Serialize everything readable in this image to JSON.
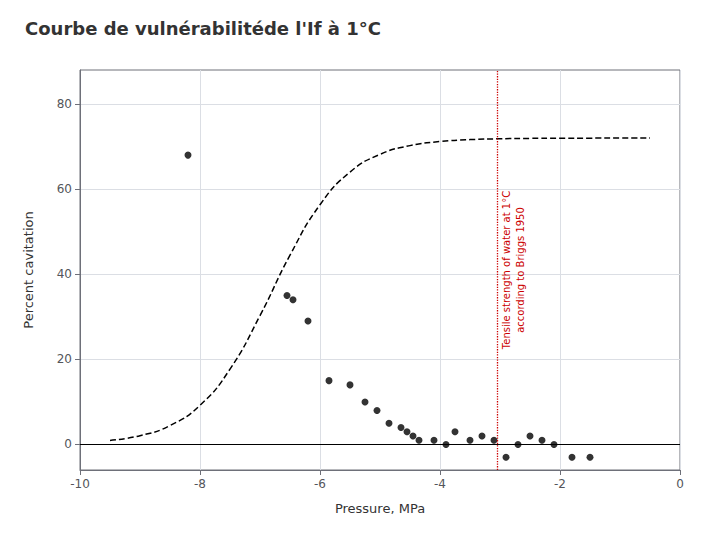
{
  "chart_data": {
    "type": "scatter",
    "title": "Courbe de vulnérabilitéde l'If à 1°C",
    "x_label": "Pressure, MPa",
    "y_label": "Percent cavitation",
    "xlim": [
      -10,
      0
    ],
    "ylim": [
      -6,
      88
    ],
    "xticks": [
      -10,
      -8,
      -6,
      -4,
      -2,
      0
    ],
    "yticks": [
      0,
      20,
      40,
      60,
      80
    ],
    "grid": true,
    "series": [
      {
        "type": "scatter",
        "marker": "circle",
        "color": "#000000",
        "x": [
          -8.2,
          -6.55,
          -6.45,
          -6.2,
          -5.85,
          -5.5,
          -5.25,
          -5.05,
          -4.85,
          -4.65,
          -4.55,
          -4.45,
          -4.35,
          -4.1,
          -3.9,
          -3.75,
          -3.5,
          -3.3,
          -3.1,
          -2.9,
          -2.7,
          -2.5,
          -2.3,
          -2.1,
          -1.8,
          -1.5
        ],
        "values": [
          68,
          35,
          34,
          29,
          15,
          14,
          10,
          8,
          5,
          4,
          3,
          2,
          1,
          1,
          0,
          3,
          1,
          2,
          1,
          -3,
          0,
          2,
          1,
          0,
          -3,
          -3
        ]
      },
      {
        "type": "line",
        "line_style": "dashed",
        "color": "#000000",
        "x": [
          -9.5,
          -9.0,
          -8.5,
          -8.0,
          -7.5,
          -7.0,
          -6.5,
          -6.0,
          -5.5,
          -5.0,
          -4.5,
          -4.0,
          -3.5,
          -3.0,
          -2.5,
          -2.0,
          -1.5,
          -1.0,
          -0.5
        ],
        "values": [
          0.945,
          2.07,
          4.45,
          9.206,
          17.71,
          30.29,
          44.48,
          56.34,
          64.01,
          68.17,
          70.23,
          71.19,
          71.64,
          71.84,
          71.93,
          71.97,
          71.99,
          71.993,
          71.997
        ]
      }
    ],
    "hline": {
      "y": 0,
      "color": "#000000",
      "line_style": "solid"
    },
    "vline": {
      "x": -3.05,
      "color": "#cc0000",
      "line_style": "dotted",
      "texts": [
        "Tensile strength of water at 1°C",
        "according to Briggs 1950"
      ]
    }
  }
}
